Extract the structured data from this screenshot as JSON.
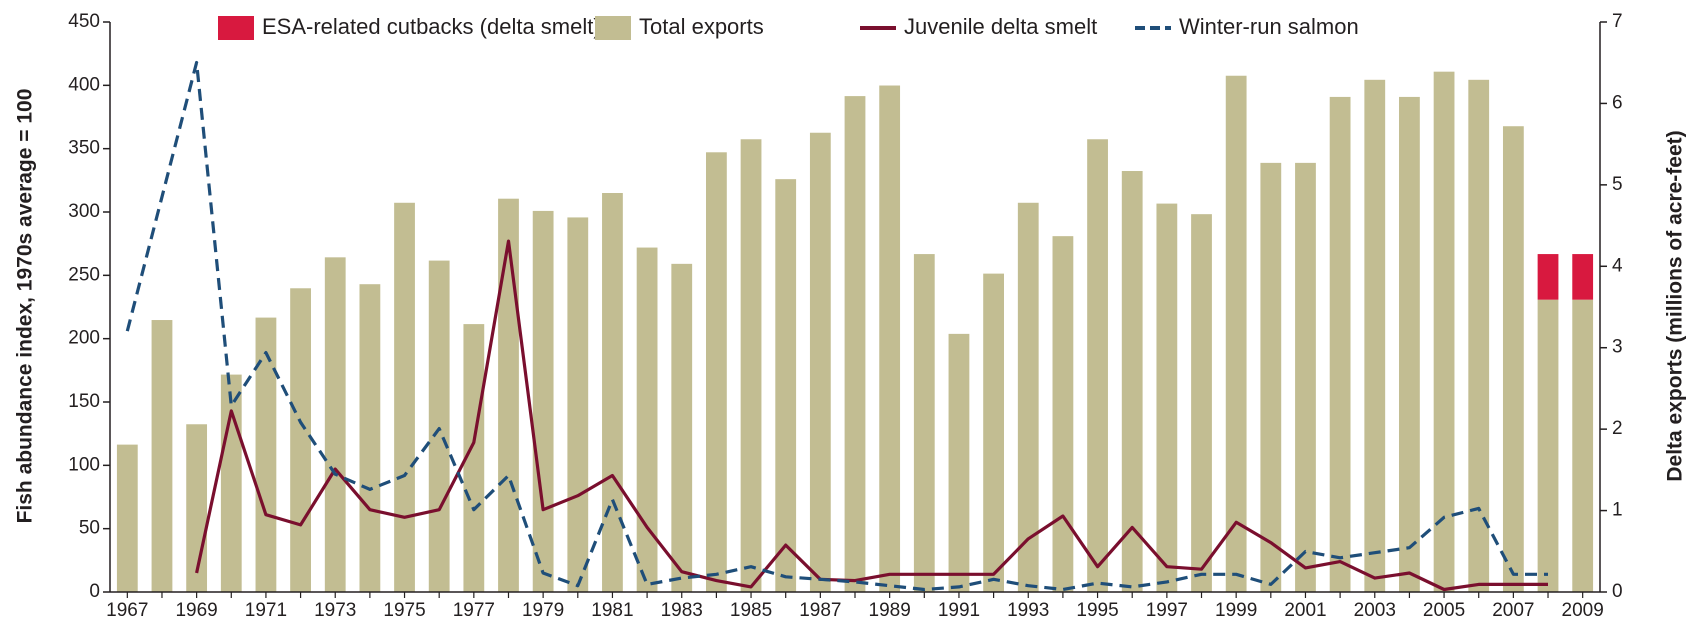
{
  "chart_data": {
    "type": "bar",
    "y_label": "Fish abundance index, 1970s average = 100",
    "y2_label": "Delta exports (millions of acre-feet)",
    "categories": [
      "1967",
      null,
      "1969",
      null,
      "1971",
      null,
      "1973",
      null,
      "1975",
      null,
      "1977",
      null,
      "1979",
      null,
      "1981",
      null,
      "1983",
      null,
      "1985",
      null,
      "1987",
      null,
      "1989",
      null,
      "1991",
      null,
      "1993",
      null,
      "1995",
      null,
      "1997",
      null,
      "1999",
      null,
      "2001",
      null,
      "2003",
      null,
      "2005",
      null,
      "2007",
      null,
      "2009"
    ],
    "series": [
      {
        "name": "ESA-related cutbacks (delta smelt)",
        "type": "bar",
        "axis": "y2",
        "color": "#d8193f",
        "values": [
          null,
          null,
          null,
          null,
          null,
          null,
          null,
          null,
          null,
          null,
          null,
          null,
          null,
          null,
          null,
          null,
          null,
          null,
          null,
          null,
          null,
          null,
          null,
          null,
          null,
          null,
          null,
          null,
          null,
          null,
          null,
          null,
          null,
          null,
          null,
          null,
          null,
          null,
          null,
          null,
          null,
          0.56,
          0.56
        ]
      },
      {
        "name": "Total exports",
        "type": "bar",
        "axis": "y2",
        "color": "#c2bd92",
        "values": [
          1.81,
          3.34,
          2.06,
          2.67,
          3.37,
          3.73,
          4.11,
          3.78,
          4.78,
          4.07,
          3.29,
          4.83,
          4.68,
          4.6,
          4.9,
          4.23,
          4.03,
          5.4,
          5.56,
          5.07,
          5.64,
          6.09,
          6.22,
          4.15,
          3.17,
          3.91,
          4.78,
          4.37,
          5.56,
          5.17,
          4.77,
          4.64,
          6.34,
          5.27,
          5.27,
          6.08,
          6.29,
          6.08,
          6.39,
          6.29,
          5.72,
          3.59,
          3.59
        ]
      },
      {
        "name": "Juvenile delta smelt",
        "type": "line",
        "color": "#7a0f2e",
        "dash": false,
        "values": [
          null,
          null,
          15,
          143,
          61,
          53,
          97,
          65,
          59,
          65,
          118,
          277,
          65,
          76,
          92,
          51,
          16,
          9,
          4,
          37,
          10,
          9,
          14,
          14,
          14,
          14,
          42,
          60,
          20,
          51,
          20,
          18,
          55,
          39,
          19,
          24,
          11,
          15,
          2,
          6,
          6,
          6,
          null
        ]
      },
      {
        "name": "Winter-run salmon",
        "type": "line",
        "color": "#1f4e79",
        "dash": true,
        "values": [
          206,
          312,
          418,
          147,
          189,
          134,
          93,
          81,
          92,
          129,
          65,
          92,
          15,
          5,
          73,
          6,
          11,
          14,
          20,
          12,
          10,
          8,
          5,
          2,
          4,
          10,
          5,
          2,
          7,
          4,
          8,
          14,
          14,
          6,
          32,
          27,
          31,
          35,
          59,
          66,
          14,
          14,
          null
        ]
      }
    ],
    "ylim": [
      0,
      450
    ],
    "yticks": [
      0,
      50,
      100,
      150,
      200,
      250,
      300,
      350,
      400,
      450
    ],
    "y2lim": [
      0,
      7
    ],
    "y2ticks": [
      0,
      1,
      2,
      3,
      4,
      5,
      6,
      7
    ],
    "grid": false
  }
}
